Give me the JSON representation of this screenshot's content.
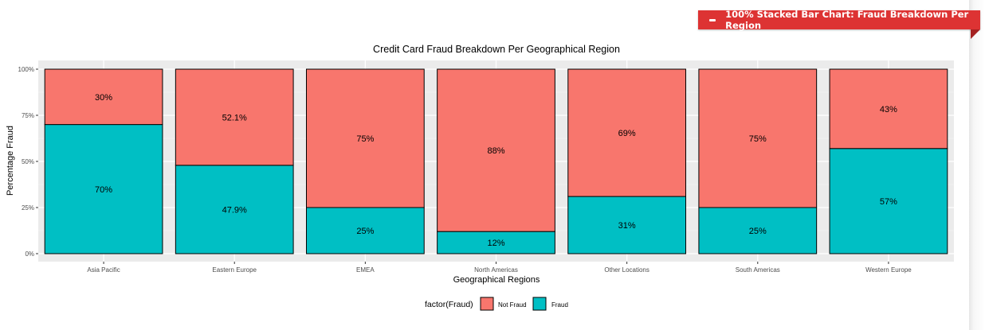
{
  "ribbon": {
    "label": "100% Stacked Bar Chart: Fraud Breakdown Per Region",
    "icon": "minus-icon",
    "color": "#dd3333"
  },
  "chart_data": {
    "type": "bar",
    "stacked": "percent",
    "title": "Credit Card Fraud Breakdown Per Geographical Region",
    "xlabel": "Geographical Regions",
    "ylabel": "Percentage Fraud",
    "ylim": [
      0,
      100
    ],
    "yticks": [
      "0%",
      "25%",
      "50%",
      "75%",
      "100%"
    ],
    "grid": true,
    "legend_position": "bottom",
    "legend_title": "factor(Fraud)",
    "categories": [
      "Asia Pacific",
      "Eastern Europe",
      "EMEA",
      "North Americas",
      "Other Locations",
      "South Americas",
      "Western Europe"
    ],
    "series": [
      {
        "name": "Not Fraud",
        "color": "#f8766d",
        "values": [
          30,
          52.1,
          75,
          88,
          69,
          75,
          43
        ],
        "labels": [
          "30%",
          "52.1%",
          "75%",
          "88%",
          "69%",
          "75%",
          "43%"
        ]
      },
      {
        "name": "Fraud",
        "color": "#00bfc4",
        "values": [
          70,
          47.9,
          25,
          12,
          31,
          25,
          57
        ],
        "labels": [
          "70%",
          "47.9%",
          "25%",
          "12%",
          "31%",
          "25%",
          "57%"
        ]
      }
    ]
  }
}
